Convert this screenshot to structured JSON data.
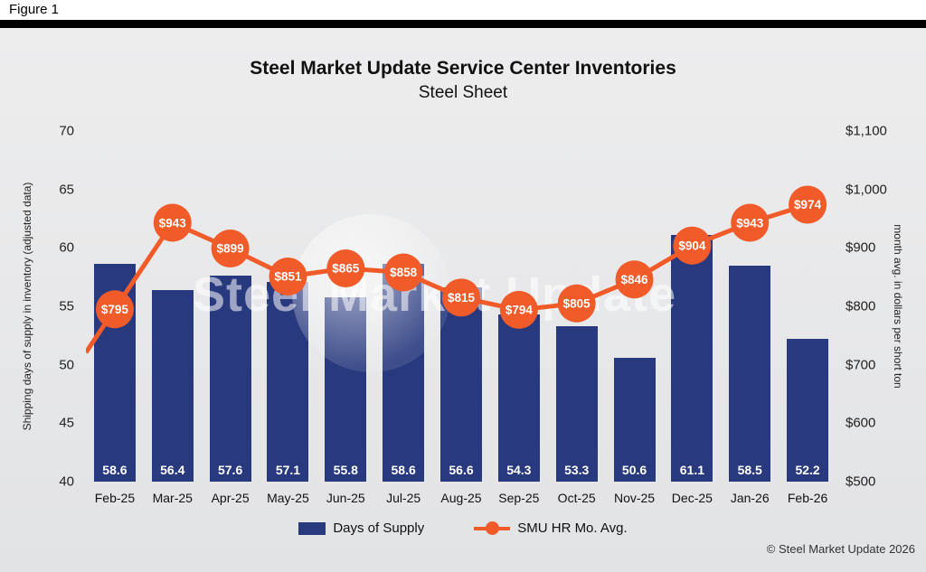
{
  "figure_label": "Figure 1",
  "title": "Steel Market Update Service Center Inventories",
  "subtitle": "Steel Sheet",
  "watermark": "Steel Market Update",
  "copyright": "© Steel Market Update 2026",
  "colors": {
    "bar": "#28397e",
    "line": "#f15a29",
    "header_rule": "#000000",
    "background": "#e6e7e8",
    "value_label": "#ffffff"
  },
  "left_axis": {
    "title": "Shipping days of supply in inventory (adjusted data)",
    "ticks": [
      {
        "label": "70",
        "value": 70
      },
      {
        "label": "65",
        "value": 65
      },
      {
        "label": "60",
        "value": 60
      },
      {
        "label": "55",
        "value": 55
      },
      {
        "label": "50",
        "value": 50
      },
      {
        "label": "45",
        "value": 45
      },
      {
        "label": "40",
        "value": 40
      }
    ]
  },
  "right_axis": {
    "title": "month avg. in dollars per short ton",
    "ticks": [
      {
        "label": "$1,100",
        "value": 1100
      },
      {
        "label": "$1,000",
        "value": 1000
      },
      {
        "label": "$900",
        "value": 900
      },
      {
        "label": "$800",
        "value": 800
      },
      {
        "label": "$700",
        "value": 700
      },
      {
        "label": "$600",
        "value": 600
      },
      {
        "label": "$500",
        "value": 500
      }
    ]
  },
  "legend": [
    {
      "label": "Days of Supply",
      "type": "bar"
    },
    {
      "label": "SMU HR Mo. Avg.",
      "type": "line"
    }
  ],
  "chart_data": {
    "type": "bar",
    "combo": "bar+line",
    "categories": [
      "Feb-25",
      "Mar-25",
      "Apr-25",
      "May-25",
      "Jun-25",
      "Jul-25",
      "Aug-25",
      "Sep-25",
      "Oct-25",
      "Nov-25",
      "Dec-25",
      "Jan-26",
      "Feb-26"
    ],
    "series": [
      {
        "name": "Days of Supply",
        "type": "bar",
        "axis": "left",
        "values": [
          58.6,
          56.4,
          57.6,
          57.1,
          55.8,
          58.6,
          56.6,
          54.3,
          53.3,
          50.6,
          61.1,
          58.5,
          52.2
        ]
      },
      {
        "name": "SMU HR Mo. Avg.",
        "type": "line",
        "axis": "right",
        "values": [
          795,
          943,
          899,
          851,
          865,
          858,
          815,
          794,
          805,
          846,
          904,
          943,
          974
        ],
        "point_labels": [
          "$795",
          "$943",
          "$899",
          "$851",
          "$865",
          "$858",
          "$815",
          "$794",
          "$805",
          "$846",
          "$904",
          "$943",
          "$974"
        ]
      }
    ],
    "title": "Steel Market Update Service Center Inventories",
    "subtitle": "Steel Sheet",
    "xlabel": "",
    "ylabel_left": "Shipping days of supply in inventory (adjusted data)",
    "ylabel_right": "month avg. in dollars per short ton",
    "left_ylim": [
      40,
      70
    ],
    "right_ylim": [
      500,
      1100
    ],
    "grid": false,
    "legend_position": "bottom"
  }
}
